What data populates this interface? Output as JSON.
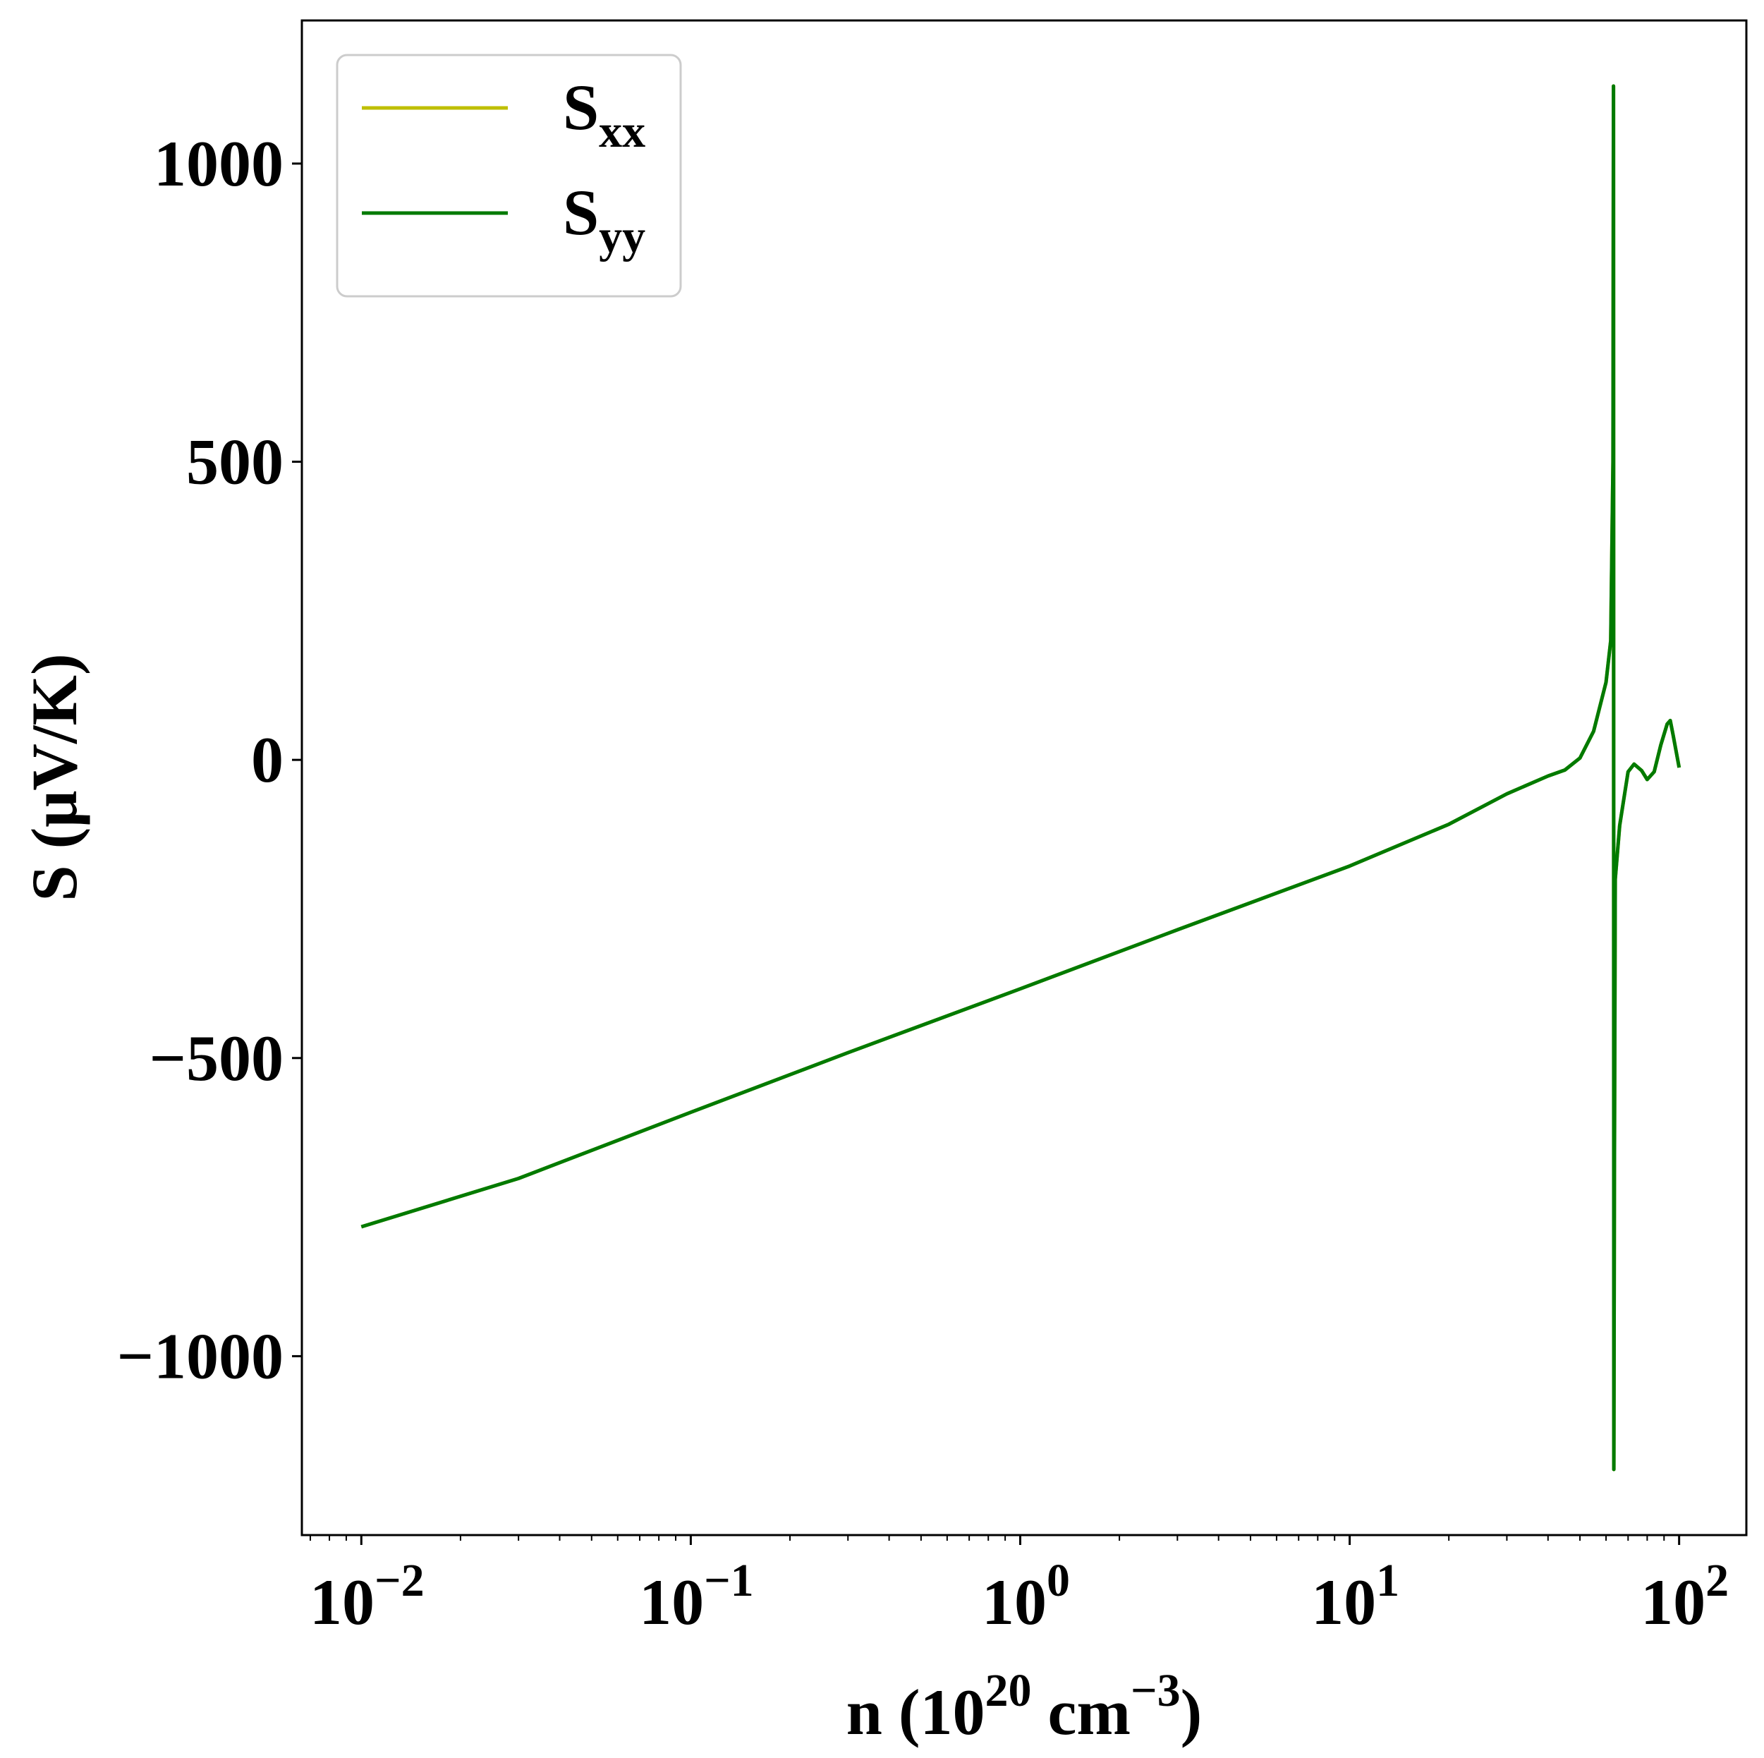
{
  "chart_data": {
    "type": "line",
    "xlabel": {
      "base": "n (10",
      "exp1": "20",
      "mid": " cm",
      "exp2": "−3",
      "tail": ")"
    },
    "ylabel": "S (μV/K)",
    "x_scale": "log",
    "xlim": [
      0.0066,
      160
    ],
    "ylim": [
      -1300,
      1240
    ],
    "grid": false,
    "legend_position": "top-left",
    "x_ticks": [
      {
        "value": 0.01,
        "base": "10",
        "exp": "−2"
      },
      {
        "value": 0.1,
        "base": "10",
        "exp": "−1"
      },
      {
        "value": 1,
        "base": "10",
        "exp": "0"
      },
      {
        "value": 10,
        "base": "10",
        "exp": "1"
      },
      {
        "value": 100,
        "base": "10",
        "exp": "2"
      }
    ],
    "y_ticks": [
      {
        "value": 1000,
        "label": "1000"
      },
      {
        "value": 500,
        "label": "500"
      },
      {
        "value": 0,
        "label": "0"
      },
      {
        "value": -500,
        "label": "−500"
      },
      {
        "value": -1000,
        "label": "−1000"
      }
    ],
    "series": [
      {
        "name": {
          "base": "S",
          "sub": "xx"
        },
        "color": "#bfbf00",
        "points": [
          [
            0.01,
            -783
          ],
          [
            0.03,
            -702
          ],
          [
            0.1,
            -591
          ],
          [
            0.3,
            -491
          ],
          [
            1,
            -384
          ],
          [
            3,
            -285
          ],
          [
            10,
            -178
          ],
          [
            20,
            -108
          ],
          [
            30,
            -57
          ],
          [
            40,
            -27
          ],
          [
            45,
            -17
          ],
          [
            50,
            3
          ],
          [
            55,
            48
          ],
          [
            60,
            130
          ],
          [
            62,
            200
          ],
          [
            63,
            500
          ],
          [
            63.2,
            1130
          ],
          [
            63.35,
            -1190
          ],
          [
            63.6,
            -700
          ],
          [
            64,
            -200
          ],
          [
            66,
            -110
          ],
          [
            70,
            -20
          ],
          [
            73,
            -7
          ],
          [
            77,
            -18
          ],
          [
            80,
            -33
          ],
          [
            84,
            -20
          ],
          [
            88,
            25
          ],
          [
            92,
            60
          ],
          [
            94,
            66
          ],
          [
            96,
            40
          ],
          [
            100,
            -13
          ]
        ]
      },
      {
        "name": {
          "base": "S",
          "sub": "yy"
        },
        "color": "#007a00",
        "points": [
          [
            0.01,
            -783
          ],
          [
            0.03,
            -702
          ],
          [
            0.1,
            -591
          ],
          [
            0.3,
            -491
          ],
          [
            1,
            -384
          ],
          [
            3,
            -285
          ],
          [
            10,
            -178
          ],
          [
            20,
            -108
          ],
          [
            30,
            -57
          ],
          [
            40,
            -27
          ],
          [
            45,
            -17
          ],
          [
            50,
            3
          ],
          [
            55,
            48
          ],
          [
            60,
            130
          ],
          [
            62,
            200
          ],
          [
            63,
            500
          ],
          [
            63.2,
            1130
          ],
          [
            63.35,
            -1190
          ],
          [
            63.6,
            -700
          ],
          [
            64,
            -200
          ],
          [
            66,
            -110
          ],
          [
            70,
            -20
          ],
          [
            73,
            -7
          ],
          [
            77,
            -18
          ],
          [
            80,
            -33
          ],
          [
            84,
            -20
          ],
          [
            88,
            25
          ],
          [
            92,
            60
          ],
          [
            94,
            66
          ],
          [
            96,
            40
          ],
          [
            100,
            -13
          ]
        ]
      }
    ]
  }
}
